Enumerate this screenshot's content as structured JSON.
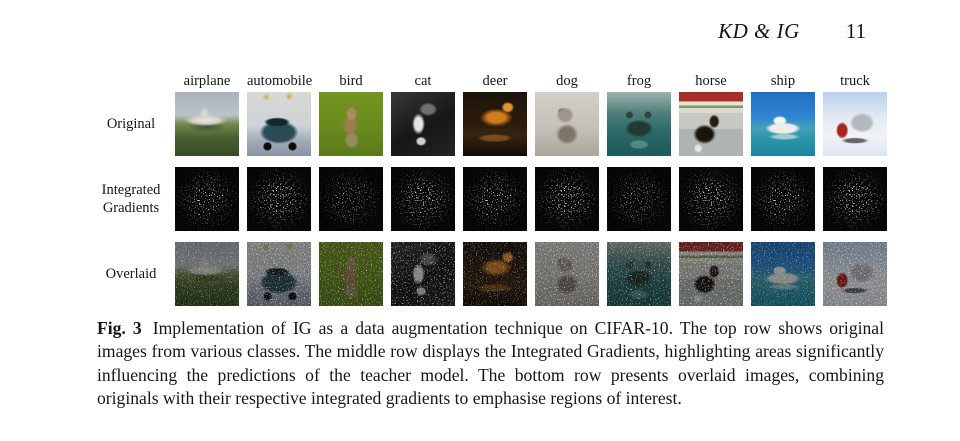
{
  "page": {
    "header_title": "KD & IG",
    "page_number": "11"
  },
  "figure": {
    "classes": [
      "airplane",
      "automobile",
      "bird",
      "cat",
      "deer",
      "dog",
      "frog",
      "horse",
      "ship",
      "truck"
    ],
    "row_labels": [
      "Original",
      "Integrated Gradients",
      "Overlaid"
    ]
  },
  "caption": {
    "label": "Fig. 3",
    "text": "Implementation of IG as a data augmentation technique on CIFAR-10. The top row shows original images from various classes. The middle row displays the Integrated Gradients, highlighting areas significantly influencing the predictions of the teacher model. The bottom row presents overlaid images, combining originals with their respective integrated gradients to emphasise regions of interest."
  },
  "colors": {
    "page_background": "#ffffff",
    "text": "#161616",
    "gradient_map_background": "#060606",
    "gradient_map_speckle": "#ffffff"
  }
}
